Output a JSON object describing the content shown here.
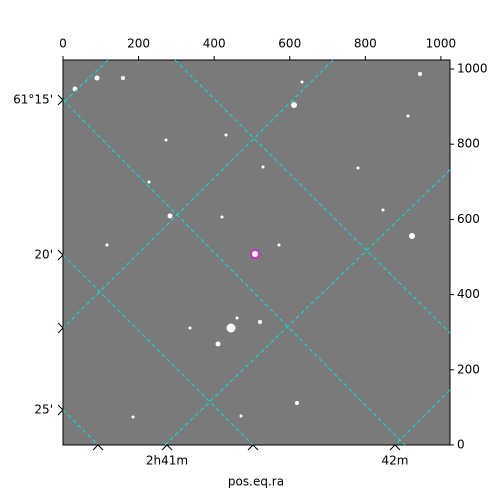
{
  "chart_data": {
    "type": "scatter",
    "xlabel": "pos.eq.ra",
    "x": [
      508
    ],
    "y": [
      508
    ],
    "color": "#e01fe0",
    "xlim": [
      0,
      1024
    ],
    "ylim": [
      0,
      1024
    ],
    "xticks": [
      0,
      200,
      400,
      600,
      800,
      1000
    ],
    "yticks": [
      0,
      200,
      400,
      600,
      800,
      1000
    ],
    "ra_tick_labels": [
      "2h41m",
      "42m"
    ],
    "dec_tick_labels": [
      "61°15'",
      "20'",
      "25'"
    ],
    "grid_color": "#00e5e5"
  }
}
